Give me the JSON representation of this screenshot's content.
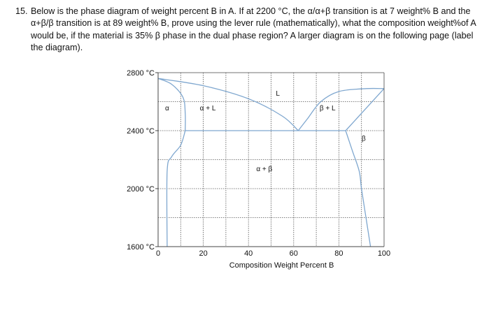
{
  "question": {
    "number": "15.",
    "text": "Below is the phase diagram of weight percent B in A.  If at 2200 °C, the α/α+β transition is at 7 weight% B and the α+β/β transition is at 89 weight% B, prove using the lever rule (mathematically), what the composition weight%of A would be, if the material is 35% β phase in the dual phase region? A larger diagram is on the following page (label the diagram)."
  },
  "chart_data": {
    "type": "phase-diagram",
    "xlabel": "Composition Weight Percent B",
    "x_ticks": [
      "0",
      "20",
      "40",
      "60",
      "80",
      "100"
    ],
    "x_tick_values": [
      0,
      20,
      40,
      60,
      80,
      100
    ],
    "y_ticks": [
      "2800 °C",
      "2400 °C",
      "2000 °C",
      "1600 °C"
    ],
    "y_tick_values": [
      2800,
      2400,
      2000,
      1600
    ],
    "xlim": [
      0,
      100
    ],
    "ylim": [
      1600,
      2800
    ],
    "grid": true,
    "line_color": "#7fa7cf",
    "eutectic": {
      "temperature": 2400,
      "composition": 62,
      "alpha_limit": 12,
      "beta_limit": 83
    },
    "regions": [
      {
        "label": "α",
        "x": 4,
        "y": 2540
      },
      {
        "label": "α + L",
        "x": 22,
        "y": 2540
      },
      {
        "label": "L",
        "x": 53,
        "y": 2640
      },
      {
        "label": "β + L",
        "x": 75,
        "y": 2540
      },
      {
        "label": "β",
        "x": 91,
        "y": 2330
      },
      {
        "label": "α + β",
        "x": 47,
        "y": 2120
      }
    ],
    "curves": {
      "alpha_liquidus": [
        [
          0,
          2760
        ],
        [
          20,
          2710
        ],
        [
          40,
          2620
        ],
        [
          55,
          2500
        ],
        [
          62,
          2400
        ]
      ],
      "beta_liquidus": [
        [
          62,
          2400
        ],
        [
          66,
          2480
        ],
        [
          72,
          2600
        ],
        [
          80,
          2670
        ],
        [
          92,
          2690
        ],
        [
          100,
          2690
        ]
      ],
      "alpha_solidus": [
        [
          0,
          2760
        ],
        [
          6,
          2720
        ],
        [
          11,
          2630
        ],
        [
          12,
          2520
        ],
        [
          12,
          2400
        ]
      ],
      "beta_solidus": [
        [
          83,
          2400
        ],
        [
          100,
          2690
        ]
      ],
      "alpha_solvus": [
        [
          12,
          2400
        ],
        [
          10,
          2300
        ],
        [
          6,
          2220
        ],
        [
          4,
          2120
        ],
        [
          4,
          1600
        ]
      ],
      "beta_solvus": [
        [
          83,
          2400
        ],
        [
          86,
          2260
        ],
        [
          89,
          2120
        ],
        [
          90,
          2000
        ],
        [
          92,
          1800
        ],
        [
          94,
          1600
        ]
      ],
      "eutectic_line": [
        [
          12,
          2400
        ],
        [
          83,
          2400
        ]
      ]
    }
  }
}
